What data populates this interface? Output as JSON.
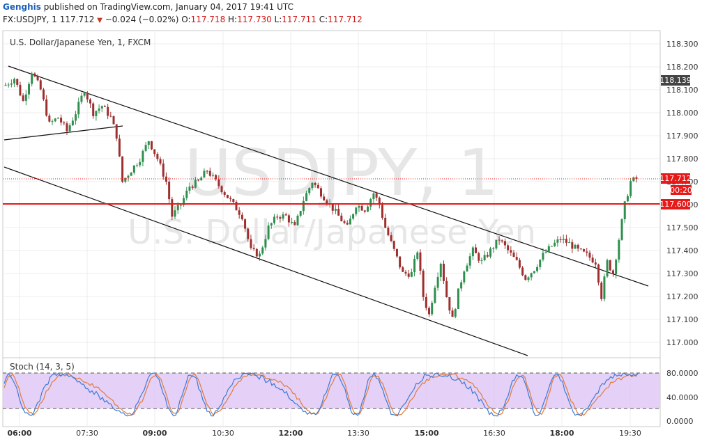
{
  "header": {
    "user": "Genghis",
    "published": " published on TradingView.com, January 04, 2017 19:41 UTC",
    "symbol": "FX:USDJPY, 1 ",
    "last": "117.712",
    "change": "−0.024 (−0.02%) ",
    "o_label": "O:",
    "o_value": "117.718",
    "h_label": " H:",
    "h_value": "117.730",
    "l_label": " L:",
    "l_value": "117.711",
    "c_label": " C:",
    "c_value": "117.712"
  },
  "chart_data": {
    "type": "candlestick",
    "title": "U.S. Dollar/Japanese Yen, 1, FXCM",
    "watermark_symbol": "USDJPY, 1",
    "watermark_name": "U.S. Dollar/Japanese Yen",
    "y_ticks": [
      "118.300",
      "118.200",
      "118.100",
      "118.000",
      "117.900",
      "117.800",
      "117.700",
      "117.600",
      "117.500",
      "117.400",
      "117.300",
      "117.200",
      "117.100",
      "117.000"
    ],
    "ylim": [
      116.95,
      118.37
    ],
    "x_ticks": [
      "06:00",
      "07:30",
      "09:00",
      "10:30",
      "12:00",
      "13:30",
      "15:00",
      "16:30",
      "18:00",
      "19:30"
    ],
    "price_labels": {
      "high_marker": "118.139",
      "last_price": "117.712",
      "countdown": "00:20",
      "horizontal_level": "117.600"
    },
    "price_path": [
      [
        0,
        118.12
      ],
      [
        3,
        118.15
      ],
      [
        6,
        118.05
      ],
      [
        9,
        118.18
      ],
      [
        12,
        118.1
      ],
      [
        15,
        117.95
      ],
      [
        18,
        117.98
      ],
      [
        21,
        117.92
      ],
      [
        24,
        118.0
      ],
      [
        27,
        118.1
      ],
      [
        30,
        118.0
      ],
      [
        33,
        118.03
      ],
      [
        36,
        117.98
      ],
      [
        38,
        117.9
      ],
      [
        40,
        117.7
      ],
      [
        43,
        117.75
      ],
      [
        46,
        117.8
      ],
      [
        49,
        117.88
      ],
      [
        52,
        117.8
      ],
      [
        55,
        117.7
      ],
      [
        57,
        117.55
      ],
      [
        60,
        117.6
      ],
      [
        63,
        117.68
      ],
      [
        66,
        117.7
      ],
      [
        69,
        117.75
      ],
      [
        72,
        117.7
      ],
      [
        75,
        117.65
      ],
      [
        78,
        117.6
      ],
      [
        81,
        117.55
      ],
      [
        84,
        117.4
      ],
      [
        87,
        117.38
      ],
      [
        90,
        117.5
      ],
      [
        93,
        117.55
      ],
      [
        96,
        117.55
      ],
      [
        99,
        117.5
      ],
      [
        102,
        117.62
      ],
      [
        105,
        117.7
      ],
      [
        108,
        117.65
      ],
      [
        111,
        117.6
      ],
      [
        114,
        117.55
      ],
      [
        117,
        117.5
      ],
      [
        120,
        117.6
      ],
      [
        123,
        117.58
      ],
      [
        126,
        117.65
      ],
      [
        128,
        117.6
      ],
      [
        130,
        117.5
      ],
      [
        133,
        117.4
      ],
      [
        136,
        117.3
      ],
      [
        139,
        117.3
      ],
      [
        141,
        117.4
      ],
      [
        143,
        117.2
      ],
      [
        145,
        117.12
      ],
      [
        147,
        117.25
      ],
      [
        149,
        117.35
      ],
      [
        151,
        117.2
      ],
      [
        153,
        117.1
      ],
      [
        155,
        117.22
      ],
      [
        157,
        117.32
      ],
      [
        160,
        117.4
      ],
      [
        163,
        117.35
      ],
      [
        166,
        117.4
      ],
      [
        169,
        117.45
      ],
      [
        172,
        117.4
      ],
      [
        175,
        117.35
      ],
      [
        178,
        117.28
      ],
      [
        181,
        117.32
      ],
      [
        184,
        117.38
      ],
      [
        187,
        117.42
      ],
      [
        190,
        117.45
      ],
      [
        193,
        117.43
      ],
      [
        196,
        117.4
      ],
      [
        199,
        117.38
      ],
      [
        202,
        117.35
      ],
      [
        204,
        117.2
      ],
      [
        206,
        117.35
      ],
      [
        208,
        117.3
      ],
      [
        210,
        117.45
      ],
      [
        212,
        117.6
      ],
      [
        214,
        117.7
      ],
      [
        216,
        117.712
      ]
    ],
    "stoch": {
      "label": "Stoch (14, 3, 5)",
      "ticks": [
        "80.0000",
        "40.0000",
        "0.0000"
      ],
      "upper": 80,
      "lower": 20
    },
    "colors": {
      "up": "#2f8f4e",
      "down": "#9e2f2f",
      "level": "#e81919",
      "stoch_k": "#3b7bd6",
      "stoch_d": "#e07b39",
      "stoch_band": "#e0c8f7",
      "high_marker_bg": "#444444",
      "last_bg": "#e81919"
    }
  }
}
